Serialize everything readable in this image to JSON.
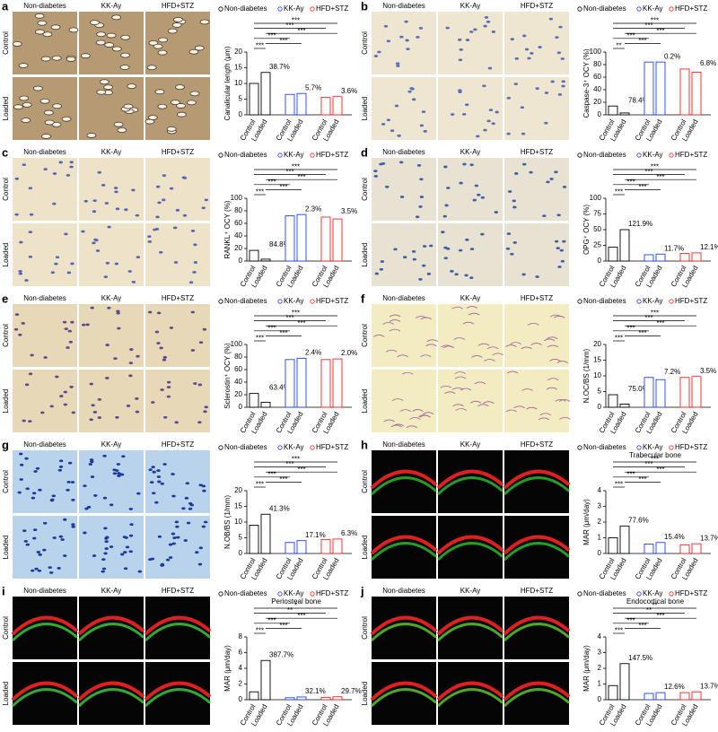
{
  "chart_data": [
    {
      "type": "bar",
      "panel": "a",
      "columns": [
        "Non-diabetes",
        "KK-Ay",
        "HFD+STZ"
      ],
      "rows": [
        "Control",
        "Loaded"
      ],
      "ylabel": "Canalicular length (μm)",
      "categories": [
        "Control",
        "Loaded"
      ],
      "series": [
        {
          "name": "Non-diabetes",
          "color": "#000000",
          "values": [
            10,
            13.5
          ]
        },
        {
          "name": "KK-Ay",
          "color": "#1f3fff",
          "values": [
            6.5,
            6.8
          ]
        },
        {
          "name": "HFD+STZ",
          "color": "#ff2020",
          "values": [
            5.6,
            5.8
          ]
        }
      ],
      "ylim": [
        0,
        20
      ],
      "yticks": [
        0,
        5,
        10,
        15,
        20
      ],
      "annotations": [
        "38.7%",
        "5.7%",
        "3.6%"
      ],
      "significance": [
        "***",
        "***",
        "***",
        "***",
        "***",
        "***"
      ]
    },
    {
      "type": "bar",
      "panel": "b",
      "columns": [
        "Non-diabetes",
        "KK-Ay",
        "HFD+STZ"
      ],
      "rows": [
        "Control",
        "Loaded"
      ],
      "ylabel": "Caspase-3⁺ OCY (%)",
      "categories": [
        "Control",
        "Loaded"
      ],
      "series": [
        {
          "name": "Non-diabetes",
          "color": "#000000",
          "values": [
            14,
            3
          ]
        },
        {
          "name": "KK-Ay",
          "color": "#1f3fff",
          "values": [
            84,
            84
          ]
        },
        {
          "name": "HFD+STZ",
          "color": "#ff2020",
          "values": [
            73,
            68
          ]
        }
      ],
      "ylim": [
        0,
        100
      ],
      "yticks": [
        0,
        20,
        40,
        60,
        80,
        100
      ],
      "annotations": [
        "78.4%",
        "0.2%",
        "6.8%"
      ],
      "significance": [
        "***",
        "***",
        "***",
        "***",
        "***",
        "**"
      ]
    },
    {
      "type": "bar",
      "panel": "c",
      "columns": [
        "Non-diabetes",
        "KK-Ay",
        "HFD+STZ"
      ],
      "rows": [
        "Control",
        "Loaded"
      ],
      "ylabel": "RANKL⁺ OCY (%)",
      "categories": [
        "Control",
        "Loaded"
      ],
      "series": [
        {
          "name": "Non-diabetes",
          "color": "#000000",
          "values": [
            17,
            3
          ]
        },
        {
          "name": "KK-Ay",
          "color": "#1f3fff",
          "values": [
            72,
            74
          ]
        },
        {
          "name": "HFD+STZ",
          "color": "#ff2020",
          "values": [
            70,
            67
          ]
        }
      ],
      "ylim": [
        0,
        100
      ],
      "yticks": [
        0,
        20,
        40,
        60,
        80,
        100
      ],
      "annotations": [
        "84.8%",
        "2.3%",
        "3.5%"
      ],
      "significance": [
        "***",
        "***",
        "***",
        "***",
        "***",
        "***"
      ]
    },
    {
      "type": "bar",
      "panel": "d",
      "columns": [
        "Non-diabetes",
        "KK-Ay",
        "HFD+STZ"
      ],
      "rows": [
        "Control",
        "Loaded"
      ],
      "ylabel": "OPG⁺ OCY (%)",
      "categories": [
        "Control",
        "Loaded"
      ],
      "series": [
        {
          "name": "Non-diabetes",
          "color": "#000000",
          "values": [
            22,
            50
          ]
        },
        {
          "name": "KK-Ay",
          "color": "#1f3fff",
          "values": [
            10,
            11
          ]
        },
        {
          "name": "HFD+STZ",
          "color": "#ff2020",
          "values": [
            12,
            13
          ]
        }
      ],
      "ylim": [
        0,
        100
      ],
      "yticks": [
        0,
        25,
        50,
        75,
        100
      ],
      "annotations": [
        "121.9%",
        "11.7%",
        "12.1%"
      ],
      "significance": [
        "***",
        "***",
        "***",
        "***",
        "***",
        "***"
      ]
    },
    {
      "type": "bar",
      "panel": "e",
      "columns": [
        "Non-diabetes",
        "KK-Ay",
        "HFD+STZ"
      ],
      "rows": [
        "Control",
        "Loaded"
      ],
      "ylabel": "Sclerostin⁺ OCY (%)",
      "categories": [
        "Control",
        "Loaded"
      ],
      "series": [
        {
          "name": "Non-diabetes",
          "color": "#000000",
          "values": [
            22,
            8
          ]
        },
        {
          "name": "KK-Ay",
          "color": "#1f3fff",
          "values": [
            76,
            78
          ]
        },
        {
          "name": "HFD+STZ",
          "color": "#ff2020",
          "values": [
            76,
            77
          ]
        }
      ],
      "ylim": [
        0,
        100
      ],
      "yticks": [
        0,
        20,
        40,
        60,
        80,
        100
      ],
      "annotations": [
        "63.4%",
        "2.4%",
        "2.0%"
      ],
      "significance": [
        "***",
        "***",
        "***",
        "***",
        "***",
        "***"
      ]
    },
    {
      "type": "bar",
      "panel": "f",
      "columns": [
        "Non-diabetes",
        "KK-Ay",
        "HFD+STZ"
      ],
      "rows": [
        "Control",
        "Loaded"
      ],
      "ylabel": "N.OC/BS (1/mm)",
      "categories": [
        "Control",
        "Loaded"
      ],
      "series": [
        {
          "name": "Non-diabetes",
          "color": "#000000",
          "values": [
            4,
            1
          ]
        },
        {
          "name": "KK-Ay",
          "color": "#1f3fff",
          "values": [
            9.5,
            8.8
          ]
        },
        {
          "name": "HFD+STZ",
          "color": "#ff2020",
          "values": [
            9.5,
            9.8
          ]
        }
      ],
      "ylim": [
        0,
        20
      ],
      "yticks": [
        0,
        5,
        10,
        15,
        20
      ],
      "annotations": [
        "75.0%",
        "7.2%",
        "3.5%"
      ],
      "significance": [
        "***",
        "***",
        "***",
        "***",
        "***",
        "***"
      ]
    },
    {
      "type": "bar",
      "panel": "g",
      "columns": [
        "Non-diabetes",
        "KK-Ay",
        "HFD+STZ"
      ],
      "rows": [
        "Control",
        "Loaded"
      ],
      "ylabel": "N.OB/BS (1/mm)",
      "categories": [
        "Control",
        "Loaded"
      ],
      "series": [
        {
          "name": "Non-diabetes",
          "color": "#000000",
          "values": [
            9,
            12.5
          ]
        },
        {
          "name": "KK-Ay",
          "color": "#1f3fff",
          "values": [
            3.5,
            4.1
          ]
        },
        {
          "name": "HFD+STZ",
          "color": "#ff2020",
          "values": [
            4.4,
            4.6
          ]
        }
      ],
      "ylim": [
        0,
        20
      ],
      "yticks": [
        0,
        5,
        10,
        15,
        20
      ],
      "annotations": [
        "41.3%",
        "17.1%",
        "6.3%"
      ],
      "significance": [
        "***",
        "***",
        "***",
        "***",
        "***",
        "***"
      ]
    },
    {
      "type": "bar",
      "panel": "h",
      "columns": [
        "Non-diabetes",
        "KK-Ay",
        "HFD+STZ"
      ],
      "rows": [
        "Control",
        "Loaded"
      ],
      "subtitle": "Trabecular bone",
      "ylabel": "MAR (μm/day)",
      "categories": [
        "Control",
        "Loaded"
      ],
      "series": [
        {
          "name": "Non-diabetes",
          "color": "#000000",
          "values": [
            1.0,
            1.75
          ]
        },
        {
          "name": "KK-Ay",
          "color": "#1f3fff",
          "values": [
            0.6,
            0.7
          ]
        },
        {
          "name": "HFD+STZ",
          "color": "#ff2020",
          "values": [
            0.55,
            0.62
          ]
        }
      ],
      "ylim": [
        0,
        4
      ],
      "yticks": [
        0,
        1,
        2,
        3,
        4
      ],
      "annotations": [
        "77.6%",
        "15.4%",
        "13.7%"
      ],
      "significance": [
        "***",
        "***",
        "***",
        "***",
        "***",
        "***"
      ]
    },
    {
      "type": "bar",
      "panel": "i",
      "columns": [
        "Non-diabetes",
        "KK-Ay",
        "HFD+STZ"
      ],
      "rows": [
        "Control",
        "Loaded"
      ],
      "subtitle": "Periosteal bone",
      "ylabel": "MAR (μm/day)",
      "categories": [
        "Control",
        "Loaded"
      ],
      "series": [
        {
          "name": "Non-diabetes",
          "color": "#000000",
          "values": [
            1.0,
            5.0
          ]
        },
        {
          "name": "KK-Ay",
          "color": "#1f3fff",
          "values": [
            0.25,
            0.35
          ]
        },
        {
          "name": "HFD+STZ",
          "color": "#ff2020",
          "values": [
            0.3,
            0.38
          ]
        }
      ],
      "ylim": [
        0,
        8
      ],
      "yticks": [
        0,
        2,
        4,
        6,
        8
      ],
      "annotations": [
        "387.7%",
        "32.1%",
        "29.7%"
      ],
      "significance": [
        "*",
        "**",
        "***",
        "***",
        "***",
        "***"
      ]
    },
    {
      "type": "bar",
      "panel": "j",
      "columns": [
        "Non-diabetes",
        "KK-Ay",
        "HFD+STZ"
      ],
      "rows": [
        "Control",
        "Loaded"
      ],
      "subtitle": "Endocortical bone",
      "ylabel": "MAR (μm/day)",
      "categories": [
        "Control",
        "Loaded"
      ],
      "series": [
        {
          "name": "Non-diabetes",
          "color": "#000000",
          "values": [
            0.9,
            2.3
          ]
        },
        {
          "name": "KK-Ay",
          "color": "#1f3fff",
          "values": [
            0.4,
            0.45
          ]
        },
        {
          "name": "HFD+STZ",
          "color": "#ff2020",
          "values": [
            0.45,
            0.5
          ]
        }
      ],
      "ylim": [
        0,
        4
      ],
      "yticks": [
        0,
        1,
        2,
        3,
        4
      ],
      "annotations": [
        "147.5%",
        "12.6%",
        "13.7%"
      ],
      "significance": [
        "**",
        "**",
        "***",
        "***",
        "***",
        "***"
      ]
    }
  ]
}
